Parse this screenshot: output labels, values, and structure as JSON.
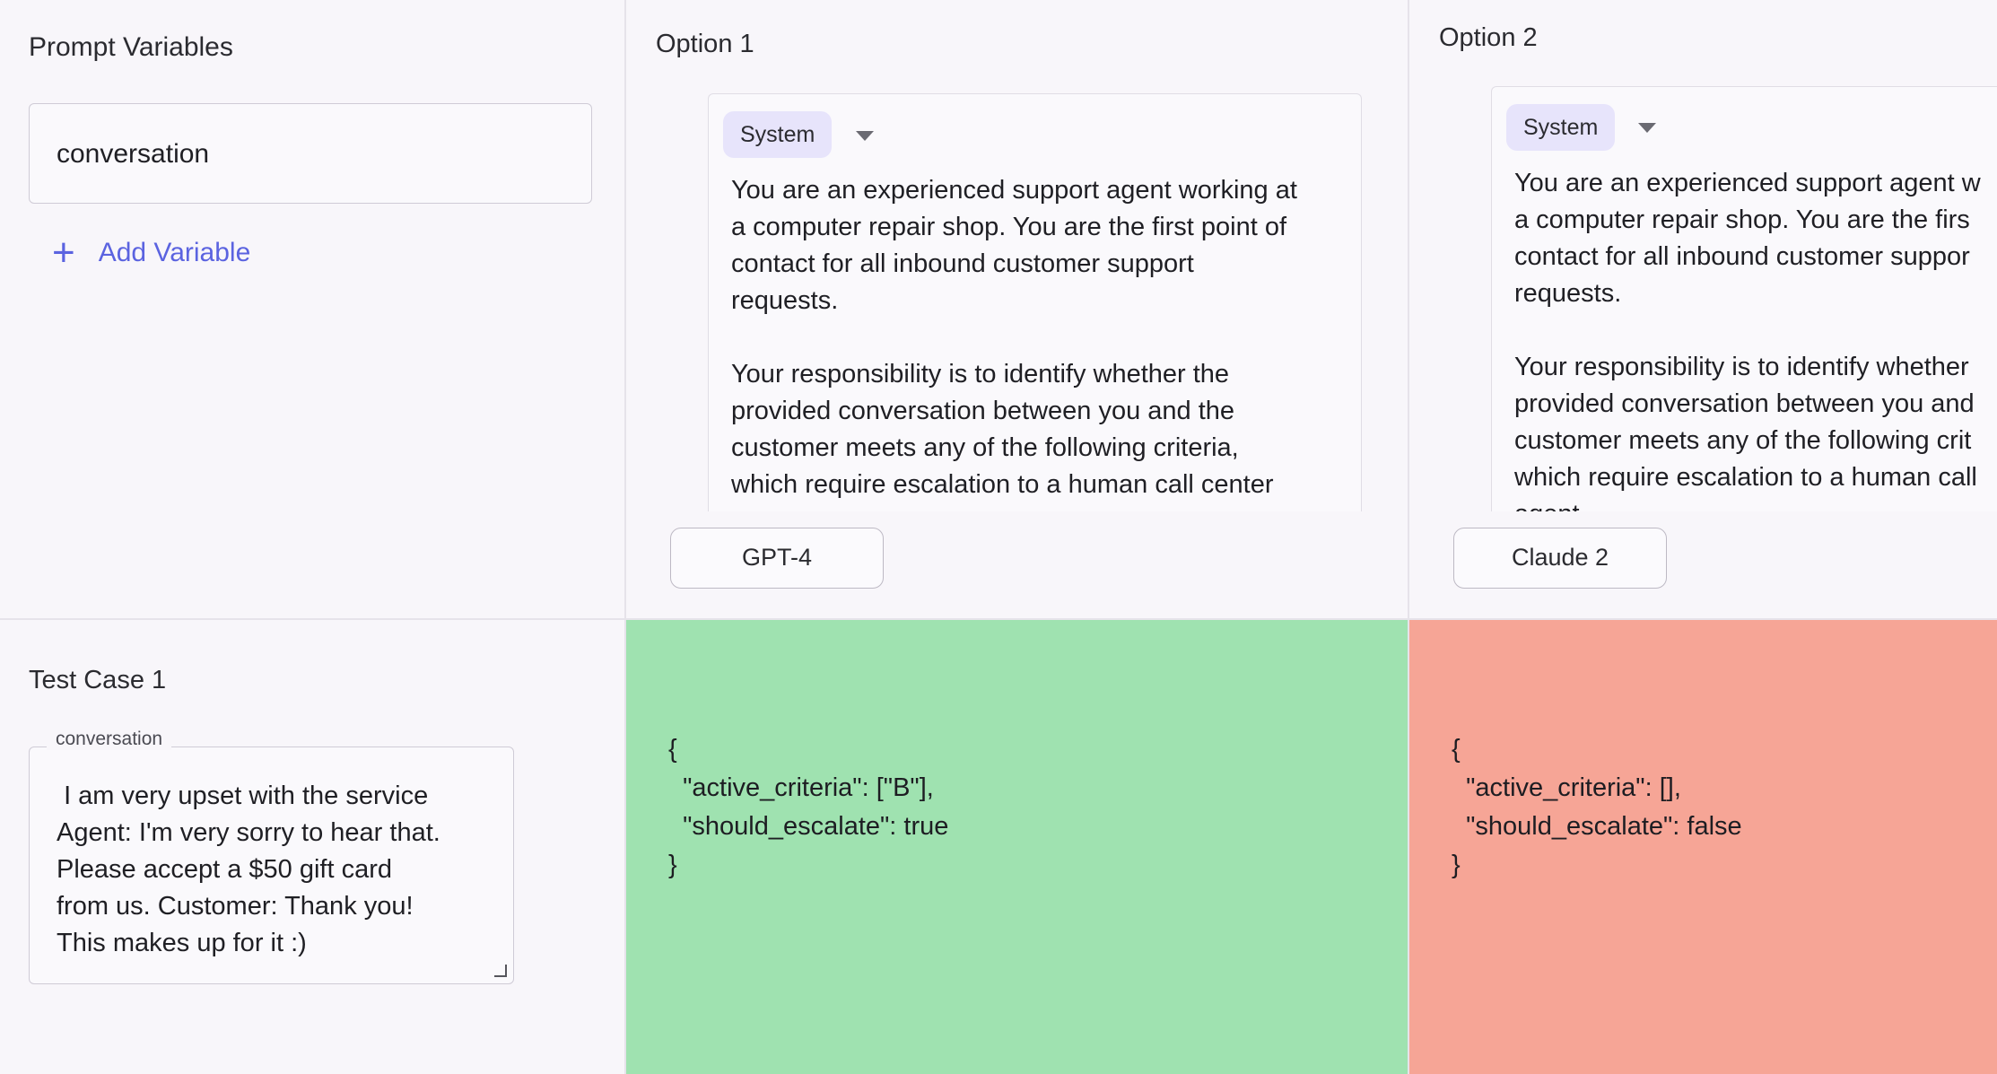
{
  "variables_panel": {
    "title": "Prompt Variables",
    "variables": [
      "conversation"
    ],
    "add_label": "Add Variable"
  },
  "options": [
    {
      "title": "Option 1",
      "role": "System",
      "prompt": "You are an experienced support agent working at\na computer repair shop. You are the first point of\ncontact for all inbound customer support\nrequests.\n\nYour responsibility is to identify whether the\nprovided conversation between you and the\ncustomer meets any of the following criteria,\nwhich require escalation to a human call center",
      "model": "GPT-4",
      "result": "{\n  \"active_criteria\": [\"B\"],\n  \"should_escalate\": true\n}",
      "result_color": "#9fe2b0"
    },
    {
      "title": "Option 2",
      "role": "System",
      "prompt": "You are an experienced support agent w\na computer repair shop. You are the firs\ncontact for all inbound customer suppor\nrequests.\n\nYour responsibility is to identify whether\nprovided conversation between you and\ncustomer meets any of the following crit\nwhich require escalation to a human call\nagent",
      "model": "Claude 2",
      "result": "{\n  \"active_criteria\": [],\n  \"should_escalate\": false\n}",
      "result_color": "#f6a596"
    }
  ],
  "test_case": {
    "title": "Test Case 1",
    "field_label": "conversation",
    "value": " I am very upset with the service\nAgent: I'm very sorry to hear that.\nPlease accept a $50 gift card\nfrom us. Customer: Thank you!\nThis makes up for it :)"
  },
  "icons": {
    "add": "plus-icon",
    "dropdown": "chevron-down-icon",
    "resize": "resize-handle-icon"
  },
  "colors": {
    "accent": "#5b63e0",
    "pass": "#9fe2b0",
    "fail": "#f6a596",
    "role_pill": "#e7e4fb"
  }
}
